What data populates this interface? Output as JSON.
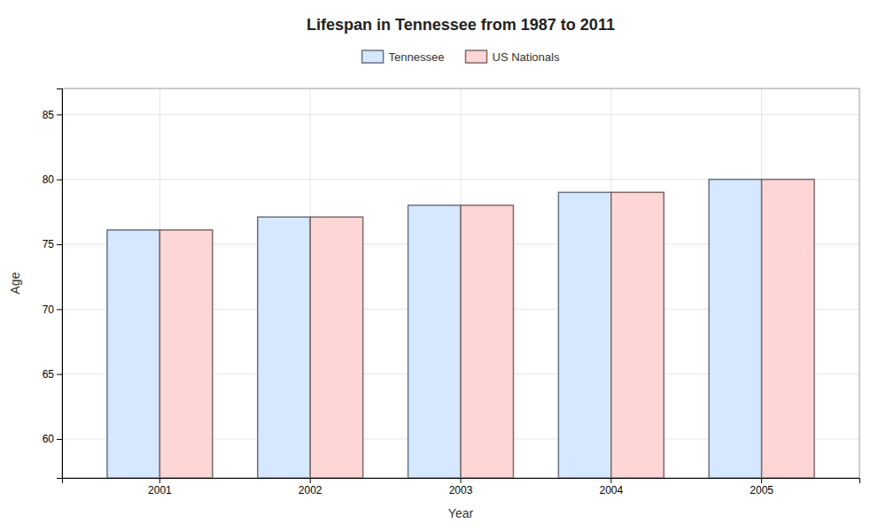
{
  "chart_data": {
    "type": "bar",
    "title": "Lifespan in Tennessee from 1987 to 2011",
    "xlabel": "Year",
    "ylabel": "Age",
    "categories": [
      "2001",
      "2002",
      "2003",
      "2004",
      "2005"
    ],
    "series": [
      {
        "name": "Tennessee",
        "color": "#d6e8ff",
        "values": [
          76.1,
          77.1,
          78.0,
          79.0,
          80.0
        ]
      },
      {
        "name": "US Nationals",
        "color": "#ffd6d6",
        "values": [
          76.1,
          77.1,
          78.0,
          79.0,
          80.0
        ]
      }
    ],
    "ylim": [
      57,
      87
    ],
    "yticks": [
      60,
      65,
      70,
      75,
      80,
      85
    ],
    "grid": true,
    "legend": "top"
  }
}
